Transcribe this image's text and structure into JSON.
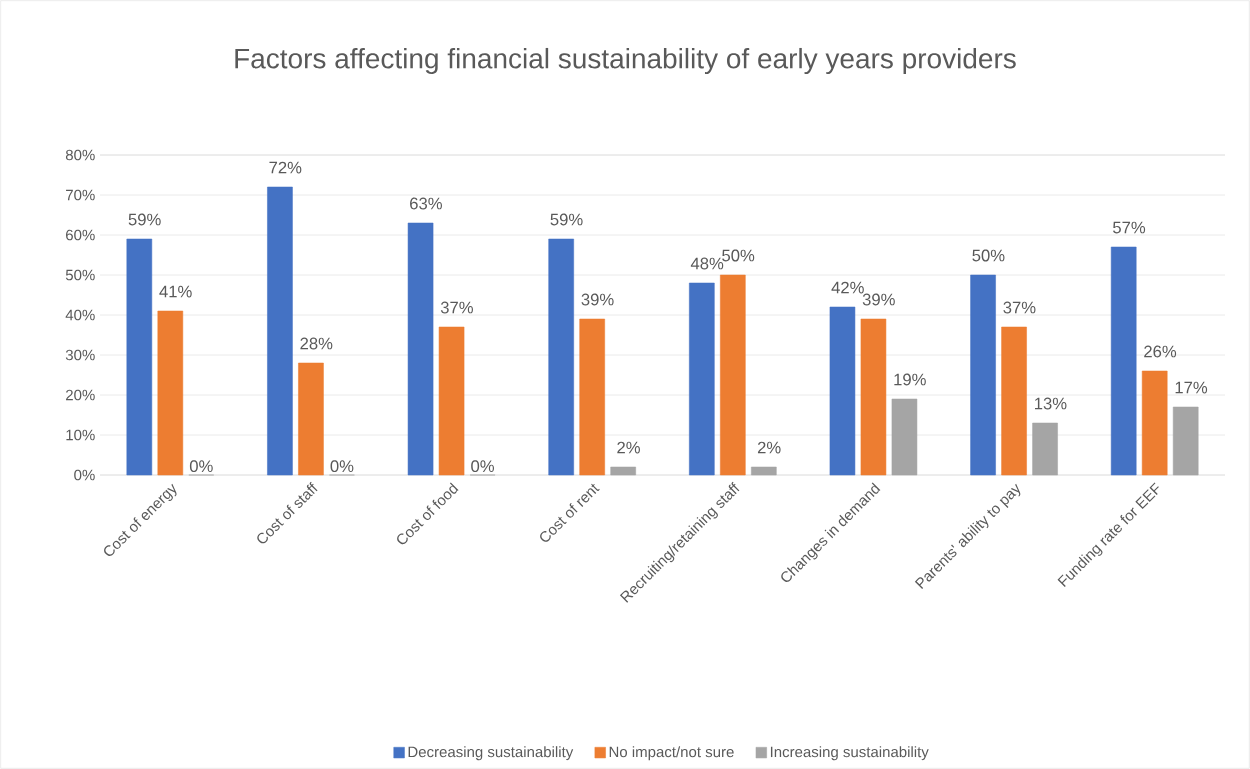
{
  "chart_data": {
    "type": "bar",
    "title": "Factors affecting financial sustainability of early years providers",
    "categories": [
      "Cost of energy",
      "Cost of staff",
      "Cost of food",
      "Cost of rent",
      "Recruiting/retaining staff",
      "Changes in demand",
      "Parents' ability to pay",
      "Funding rate for EEF"
    ],
    "series": [
      {
        "name": "Decreasing sustainability",
        "color": "#4472c4",
        "values": [
          59,
          72,
          63,
          59,
          48,
          42,
          50,
          57
        ],
        "value_labels": [
          "59%",
          "72%",
          "63%",
          "59%",
          "48%",
          "42%",
          "50%",
          "57%"
        ]
      },
      {
        "name": "No impact/not sure",
        "color": "#ed7d31",
        "values": [
          41,
          28,
          37,
          39,
          50,
          39,
          37,
          26
        ],
        "value_labels": [
          "41%",
          "28%",
          "37%",
          "39%",
          "50%",
          "39%",
          "37%",
          "26%"
        ]
      },
      {
        "name": "Increasing sustainability",
        "color": "#a5a5a5",
        "values": [
          0,
          0,
          0,
          2,
          2,
          19,
          13,
          17
        ],
        "value_labels": [
          "0%",
          "0%",
          "0%",
          "2%",
          "2%",
          "19%",
          "13%",
          "17%"
        ]
      }
    ],
    "ylim": [
      0,
      80
    ],
    "yticks": [
      {
        "value": 0,
        "label": "0%"
      },
      {
        "value": 10,
        "label": "10%"
      },
      {
        "value": 20,
        "label": "20%"
      },
      {
        "value": 30,
        "label": "30%"
      },
      {
        "value": 40,
        "label": "40%"
      },
      {
        "value": 50,
        "label": "50%"
      },
      {
        "value": 60,
        "label": "60%"
      },
      {
        "value": 70,
        "label": "70%"
      },
      {
        "value": 80,
        "label": "80%"
      }
    ],
    "grid": "y",
    "legend": "bottom"
  }
}
